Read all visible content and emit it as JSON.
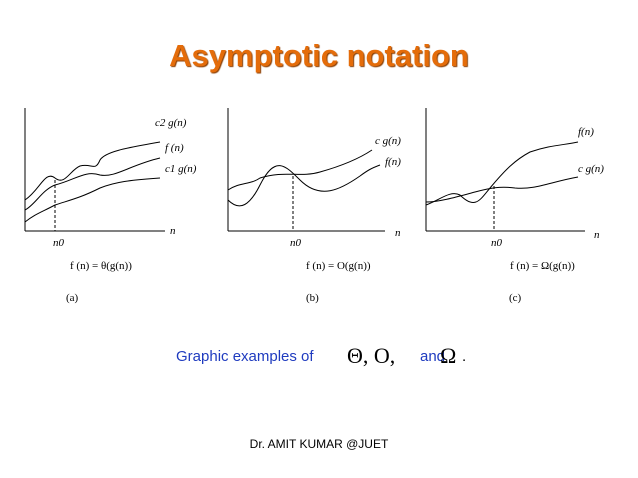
{
  "title": "Asymptotic notation",
  "graphs": [
    {
      "id": "a",
      "labels": {
        "upper": "c2 g(n)",
        "middle": "f (n)",
        "lower": "c1 g(n)",
        "n0": "n0",
        "n": "n"
      },
      "formula": "f (n) = θ(g(n))",
      "caption": "(a)"
    },
    {
      "id": "b",
      "labels": {
        "upper": "c g(n)",
        "middle": "f(n)",
        "n0": "n0",
        "n": "n"
      },
      "formula": "f (n) = O(g(n))",
      "caption": "(b)"
    },
    {
      "id": "c",
      "labels": {
        "upper": "f(n)",
        "middle": "c g(n)",
        "n0": "n0",
        "n": "n"
      },
      "formula": "f (n) = Ω(g(n))",
      "caption": "(c)"
    }
  ],
  "bottom": {
    "prefix": "Graphic examples of",
    "symbols": "Θ, O,",
    "and": "and",
    "omega": "Ω",
    "suffix": "."
  },
  "footer": "Dr. AMIT KUMAR @JUET",
  "colors": {
    "title": "#e46c0a",
    "text": "#1f3bbf"
  }
}
